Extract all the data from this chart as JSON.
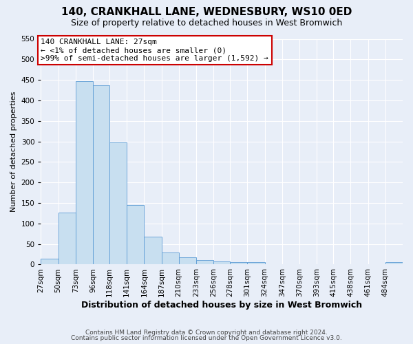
{
  "title": "140, CRANKHALL LANE, WEDNESBURY, WS10 0ED",
  "subtitle": "Size of property relative to detached houses in West Bromwich",
  "xlabel": "Distribution of detached houses by size in West Bromwich",
  "ylabel": "Number of detached properties",
  "bin_labels": [
    "27sqm",
    "50sqm",
    "73sqm",
    "96sqm",
    "118sqm",
    "141sqm",
    "164sqm",
    "187sqm",
    "210sqm",
    "233sqm",
    "256sqm",
    "278sqm",
    "301sqm",
    "324sqm",
    "347sqm",
    "370sqm",
    "393sqm",
    "415sqm",
    "438sqm",
    "461sqm",
    "484sqm"
  ],
  "bin_edges": [
    27,
    50,
    73,
    96,
    118,
    141,
    164,
    187,
    210,
    233,
    256,
    278,
    301,
    324,
    347,
    370,
    393,
    415,
    438,
    461,
    484,
    507
  ],
  "bar_values": [
    15,
    127,
    447,
    437,
    298,
    145,
    68,
    29,
    17,
    10,
    7,
    5,
    5,
    0,
    0,
    0,
    0,
    0,
    0,
    0,
    5
  ],
  "bar_color": "#c8dff0",
  "bar_edge_color": "#5b9bd5",
  "ylim": [
    0,
    550
  ],
  "yticks": [
    0,
    50,
    100,
    150,
    200,
    250,
    300,
    350,
    400,
    450,
    500,
    550
  ],
  "annotation_line1": "140 CRANKHALL LANE: 27sqm",
  "annotation_line2": "← <1% of detached houses are smaller (0)",
  "annotation_line3": ">99% of semi-detached houses are larger (1,592) →",
  "annotation_box_color": "#ffffff",
  "annotation_box_edge_color": "#cc0000",
  "footer_line1": "Contains HM Land Registry data © Crown copyright and database right 2024.",
  "footer_line2": "Contains public sector information licensed under the Open Government Licence v3.0.",
  "background_color": "#e8eef8",
  "grid_color": "#ffffff",
  "title_fontsize": 11,
  "subtitle_fontsize": 9,
  "xlabel_fontsize": 9,
  "ylabel_fontsize": 8,
  "tick_fontsize": 7.5,
  "footer_fontsize": 6.5
}
